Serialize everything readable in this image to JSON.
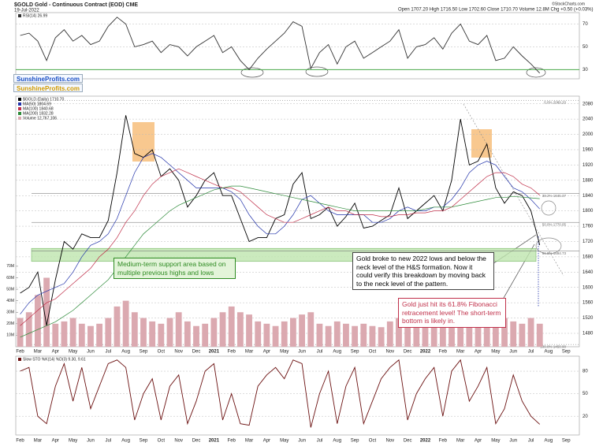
{
  "chart_data": [
    {
      "type": "line",
      "ylim": [
        22,
        80
      ],
      "yticks": [
        30,
        50,
        70
      ],
      "grid": true,
      "series": [
        {
          "name": "RSI(14) 26.99",
          "color": "#333333",
          "values": [
            60,
            62,
            55,
            38,
            58,
            65,
            55,
            60,
            52,
            55,
            68,
            76,
            70,
            50,
            52,
            55,
            45,
            52,
            50,
            42,
            50,
            55,
            60,
            45,
            50,
            38,
            30,
            40,
            48,
            55,
            62,
            72,
            68,
            31,
            45,
            52,
            35,
            50,
            55,
            40,
            45,
            50,
            55,
            65,
            40,
            50,
            52,
            58,
            48,
            62,
            70,
            55,
            52,
            60,
            38,
            40,
            50,
            42,
            35,
            26.99,
            null,
            null,
            null,
            null
          ]
        }
      ]
    },
    {
      "type": "line",
      "title": "$GOLD Gold - Continuous Contract (EOD) CME",
      "subtitle": "19-Jul-2022",
      "quote": "Open 1707.20 High 1716.50 Low 1702.60 Close 1710.70 Volume 12.8M Chg +0.50 (+0.03%)",
      "source": "©StockCharts.com",
      "watermarks": [
        "SunshineProfits.com",
        "SunshineProfits.com"
      ],
      "categories": [
        "Feb",
        null,
        "Mar",
        null,
        "Apr",
        null,
        "May",
        null,
        "Jun",
        null,
        "Jul",
        null,
        "Aug",
        null,
        "Sep",
        null,
        "Oct",
        null,
        "Nov",
        null,
        "Dec",
        null,
        "2021",
        null,
        "Feb",
        null,
        "Mar",
        null,
        "Apr",
        null,
        "May",
        null,
        "Jun",
        null,
        "Jul",
        null,
        "Aug",
        null,
        "Sep",
        null,
        "Oct",
        null,
        "Nov",
        null,
        "Dec",
        null,
        "2022",
        null,
        "Feb",
        null,
        "Mar",
        null,
        "Apr",
        null,
        "May",
        null,
        "Jun",
        null,
        "Jul",
        null,
        "Aug",
        null,
        "Sep",
        null
      ],
      "ylim": [
        1445,
        2100
      ],
      "yticks": [
        1480,
        1520,
        1560,
        1600,
        1640,
        1680,
        1720,
        1760,
        1800,
        1840,
        1880,
        1920,
        1960,
        2000,
        2040,
        2080
      ],
      "y2lim": [
        0,
        218
      ],
      "y2ticks": [
        {
          "value": 10,
          "label": "10M"
        },
        {
          "value": 20,
          "label": "20M"
        },
        {
          "value": 30,
          "label": "30M"
        },
        {
          "value": 40,
          "label": "40M"
        },
        {
          "value": 50,
          "label": "50M"
        },
        {
          "value": 60,
          "label": "60M"
        },
        {
          "value": 70,
          "label": "70M"
        }
      ],
      "series": [
        {
          "name": "$GOLD (Daily) 1710.70",
          "color": "#000000",
          "values": [
            1585,
            1600,
            1640,
            1500,
            1620,
            1720,
            1700,
            1740,
            1730,
            1730,
            1775,
            1900,
            2050,
            1950,
            1940,
            1960,
            1890,
            1910,
            1880,
            1810,
            1840,
            1880,
            1900,
            1840,
            1840,
            1780,
            1720,
            1730,
            1730,
            1780,
            1790,
            1870,
            1900,
            1780,
            1790,
            1810,
            1760,
            1785,
            1820,
            1755,
            1760,
            1775,
            1790,
            1860,
            1780,
            1800,
            1820,
            1840,
            1800,
            1880,
            2040,
            1920,
            1930,
            1975,
            1860,
            1820,
            1850,
            1840,
            1800,
            1710.7,
            null,
            null,
            null,
            null
          ]
        },
        {
          "name": "MA(50) 1804.69",
          "color": "#2233aa",
          "values": [
            1530,
            1560,
            1580,
            1590,
            1600,
            1610,
            1640,
            1680,
            1710,
            1720,
            1740,
            1780,
            1840,
            1900,
            1940,
            1950,
            1940,
            1920,
            1900,
            1880,
            1860,
            1860,
            1860,
            1860,
            1850,
            1830,
            1790,
            1760,
            1740,
            1740,
            1760,
            1790,
            1830,
            1840,
            1820,
            1800,
            1790,
            1790,
            1790,
            1790,
            1770,
            1770,
            1780,
            1800,
            1810,
            1800,
            1800,
            1810,
            1810,
            1830,
            1860,
            1900,
            1920,
            1930,
            1920,
            1890,
            1860,
            1850,
            1830,
            1805,
            null,
            null,
            null,
            null
          ]
        },
        {
          "name": "MA(100) 1840.68",
          "color": "#c0304a",
          "values": [
            1500,
            1520,
            1540,
            1560,
            1570,
            1590,
            1610,
            1630,
            1650,
            1680,
            1700,
            1730,
            1770,
            1800,
            1840,
            1870,
            1890,
            1900,
            1910,
            1900,
            1890,
            1880,
            1870,
            1860,
            1860,
            1850,
            1830,
            1810,
            1790,
            1780,
            1770,
            1770,
            1780,
            1790,
            1800,
            1810,
            1800,
            1800,
            1790,
            1790,
            1790,
            1785,
            1785,
            1790,
            1790,
            1795,
            1795,
            1800,
            1800,
            1810,
            1830,
            1850,
            1870,
            1890,
            1900,
            1900,
            1890,
            1870,
            1860,
            1841,
            null,
            null,
            null,
            null
          ]
        },
        {
          "name": "MA(200) 1832.28",
          "color": "#2e8b3a",
          "values": [
            1470,
            1480,
            1490,
            1500,
            1510,
            1525,
            1540,
            1560,
            1580,
            1600,
            1620,
            1650,
            1680,
            1710,
            1740,
            1760,
            1780,
            1800,
            1815,
            1825,
            1835,
            1845,
            1855,
            1860,
            1865,
            1865,
            1860,
            1855,
            1850,
            1845,
            1840,
            1835,
            1830,
            1825,
            1820,
            1815,
            1810,
            1805,
            1800,
            1800,
            1800,
            1800,
            1800,
            1800,
            1800,
            1800,
            1805,
            1810,
            1810,
            1810,
            1815,
            1820,
            1825,
            1830,
            1835,
            1835,
            1838,
            1836,
            1834,
            1832,
            null,
            null,
            null,
            null
          ]
        },
        {
          "name": "Volume 12,767,106",
          "type": "bar",
          "axis": "y2",
          "color": "#dba9b0",
          "values": [
            25,
            30,
            45,
            60,
            20,
            22,
            25,
            20,
            18,
            20,
            25,
            35,
            40,
            30,
            25,
            22,
            20,
            25,
            30,
            22,
            18,
            20,
            25,
            30,
            35,
            30,
            28,
            22,
            20,
            18,
            22,
            25,
            28,
            30,
            20,
            18,
            22,
            20,
            18,
            20,
            18,
            17,
            22,
            25,
            20,
            18,
            20,
            22,
            25,
            28,
            35,
            30,
            25,
            22,
            28,
            25,
            22,
            20,
            25,
            20,
            null,
            null,
            null,
            null
          ]
        }
      ],
      "support_zone": [
        1668,
        1702
      ],
      "fib_levels": [
        {
          "value": 2089.2,
          "label": "0.0% 2089.20"
        },
        {
          "value": 1845.37,
          "label": "38.2% 1845.37"
        },
        {
          "value": 1770.05,
          "label": "50.0% 1770.05"
        },
        {
          "value": 1694.73,
          "label": "61.8% 1694.73"
        },
        {
          "value": 1450.9,
          "label": "100.0% 1450.90"
        }
      ],
      "annotations": [
        "Medium-term support area based on multiple previous highs and lows",
        "Gold broke to new 2022 lows and below the neck level of the H&S formation. Now it could verify this breakdown by moving back to the neck level of the pattern.",
        "Gold just hit its 61.8% Fibonacci retracement level! The short-term bottom is likely in."
      ]
    },
    {
      "type": "line",
      "ylim": [
        -5,
        100
      ],
      "yticks": [
        20,
        50,
        80
      ],
      "grid": true,
      "categories": [
        "Feb",
        null,
        "Mar",
        null,
        "Apr",
        null,
        "May",
        null,
        "Jun",
        null,
        "Jul",
        null,
        "Aug",
        null,
        "Sep",
        null,
        "Oct",
        null,
        "Nov",
        null,
        "Dec",
        null,
        "2021",
        null,
        "Feb",
        null,
        "Mar",
        null,
        "Apr",
        null,
        "May",
        null,
        "Jun",
        null,
        "Jul",
        null,
        "Aug",
        null,
        "Sep",
        null,
        "Oct",
        null,
        "Nov",
        null,
        "Dec",
        null,
        "2022",
        null,
        "Feb",
        null,
        "Mar",
        null,
        "Apr",
        null,
        "May",
        null,
        "Jun",
        null,
        "Jul",
        null,
        "Aug",
        null,
        "Sep",
        null
      ],
      "series": [
        {
          "name": "Slow STO %K(14) %D(3) 9.30, 9.61",
          "color": "#6b1010",
          "values": [
            80,
            85,
            20,
            10,
            60,
            90,
            40,
            85,
            30,
            60,
            90,
            95,
            85,
            15,
            50,
            70,
            15,
            60,
            75,
            10,
            40,
            80,
            90,
            15,
            50,
            10,
            8,
            60,
            75,
            85,
            70,
            95,
            90,
            5,
            50,
            80,
            10,
            60,
            85,
            10,
            40,
            70,
            85,
            95,
            15,
            50,
            70,
            85,
            20,
            80,
            95,
            40,
            60,
            85,
            10,
            30,
            75,
            40,
            20,
            9.3,
            null,
            null,
            null,
            null
          ]
        }
      ]
    }
  ]
}
